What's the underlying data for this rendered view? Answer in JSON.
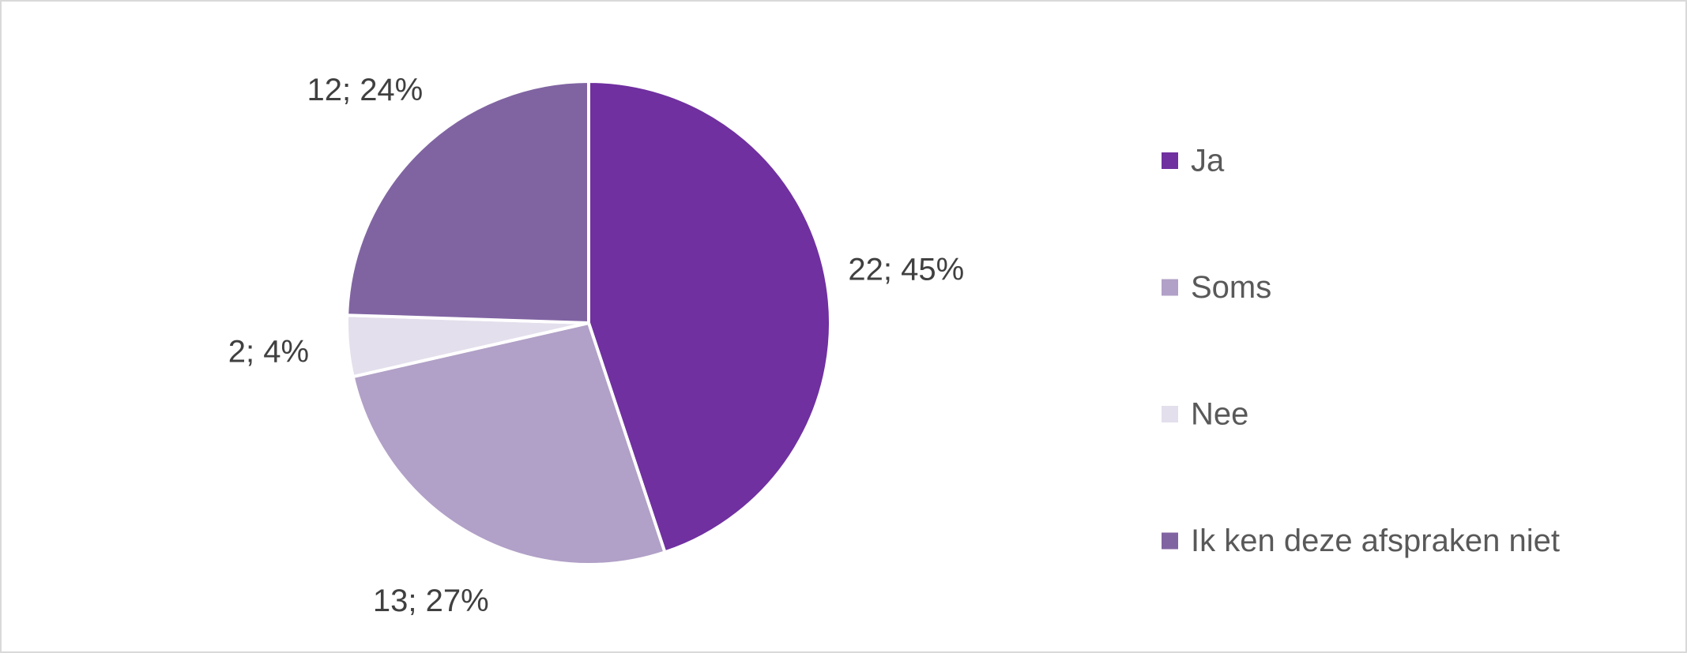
{
  "chart_data": {
    "type": "pie",
    "categories": [
      "Ja",
      "Soms",
      "Nee",
      "Ik ken deze afspraken niet"
    ],
    "values": [
      22,
      13,
      2,
      12
    ],
    "value_labels": [
      "22; 45%",
      "13; 27%",
      "2; 4%",
      "12; 24%"
    ],
    "colors": [
      "#7030a0",
      "#b1a0c7",
      "#e4dfec",
      "#8064a2"
    ],
    "legend": "right"
  }
}
